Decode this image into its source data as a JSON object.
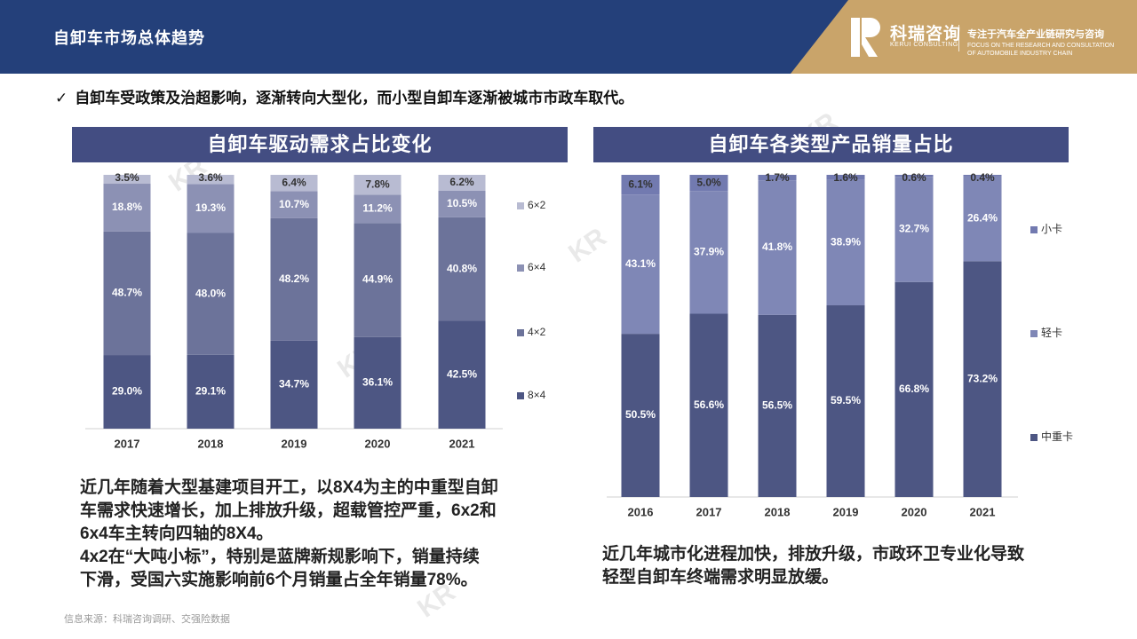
{
  "header": {
    "title": "自卸车市场总体趋势",
    "brand_cn": "科瑞咨询",
    "brand_en": "KERUI CONSULTING",
    "slogan": "专注于汽车全产业链研究与咨询",
    "slogan_en": "FOCUS ON THE RESEARCH AND CONSULTATION OF AUTOMOBILE INDUSTRY CHAIN"
  },
  "bullet": {
    "check": "✓",
    "text": "自卸车受政策及治超影响，逐渐转向大型化，而小型自卸车逐渐被城市市政车取代。"
  },
  "left_panel": {
    "title": "自卸车驱动需求占比变化"
  },
  "right_panel": {
    "title": "自卸车各类型产品销量占比"
  },
  "left_desc": [
    "近几年随着大型基建项目开工，以8X4为主的中重型自卸",
    "车需求快速增长，加上排放升级，超载管控严重，6x2和",
    "6x4车主转向四轴的8X4。",
    "4x2在“大吨小标”，特别是蓝牌新规影响下，销量持续",
    "下滑，受国六实施影响前6个月销量占全年销量78%。"
  ],
  "right_desc": [
    "近几年城市化进程加快，排放升级，市政环卫专业化导致",
    "轻型自卸车终端需求明显放缓。"
  ],
  "source": "信息来源：科瑞咨询调研、交强险数据",
  "colors": {
    "header": "#24407a",
    "gold": "#c9a46a",
    "panel": "#434d82",
    "s1": "#4d5683",
    "s2": "#6c739a",
    "s3": "#8c91b4",
    "s4": "#b8bbd2",
    "r2": "#7f87b6",
    "r3": "#727ab0"
  },
  "chart_data": [
    {
      "type": "bar",
      "stacked": true,
      "categories": [
        "2017",
        "2018",
        "2019",
        "2020",
        "2021"
      ],
      "series": [
        {
          "name": "8×4",
          "values": [
            29.0,
            29.1,
            34.7,
            36.1,
            42.5
          ],
          "labels": [
            "29.0%",
            "29.1%",
            "34.7%",
            "36.1%",
            "42.5%"
          ]
        },
        {
          "name": "4×2",
          "values": [
            48.7,
            48.0,
            48.2,
            44.9,
            40.8
          ],
          "labels": [
            "48.7%",
            "48.0%",
            "48.2%",
            "44.9%",
            "40.8%"
          ]
        },
        {
          "name": "6×4",
          "values": [
            18.8,
            19.3,
            10.7,
            11.2,
            10.5
          ],
          "labels": [
            "18.8%",
            "19.3%",
            "10.7%",
            "11.2%",
            "10.5%"
          ]
        },
        {
          "name": "6×2",
          "values": [
            3.5,
            3.6,
            6.4,
            7.8,
            6.2
          ],
          "labels": [
            "3.5%",
            "3.6%",
            "6.4%",
            "7.8%",
            "6.2%"
          ]
        }
      ],
      "legend_order": [
        "6×2",
        "6×4",
        "4×2",
        "8×4"
      ],
      "ylim": [
        0,
        100
      ],
      "legend": "right"
    },
    {
      "type": "bar",
      "stacked": true,
      "categories": [
        "2016",
        "2017",
        "2018",
        "2019",
        "2020",
        "2021"
      ],
      "series": [
        {
          "name": "中重卡",
          "values": [
            50.5,
            56.6,
            56.5,
            59.5,
            66.8,
            73.2
          ],
          "labels": [
            "50.5%",
            "56.6%",
            "56.5%",
            "59.5%",
            "66.8%",
            "73.2%"
          ]
        },
        {
          "name": "轻卡",
          "values": [
            43.1,
            37.9,
            41.8,
            38.9,
            32.7,
            26.4
          ],
          "labels": [
            "43.1%",
            "37.9%",
            "41.8%",
            "38.9%",
            "32.7%",
            "26.4%"
          ]
        },
        {
          "name": "小卡",
          "values": [
            6.1,
            5.0,
            1.7,
            1.6,
            0.6,
            0.4
          ],
          "labels": [
            "6.1%",
            "5.0%",
            "1.7%",
            "1.6%",
            "0.6%",
            "0.4%"
          ]
        }
      ],
      "legend_order": [
        "小卡",
        "轻卡",
        "中重卡"
      ],
      "ylim": [
        0,
        100
      ],
      "legend": "right"
    }
  ]
}
